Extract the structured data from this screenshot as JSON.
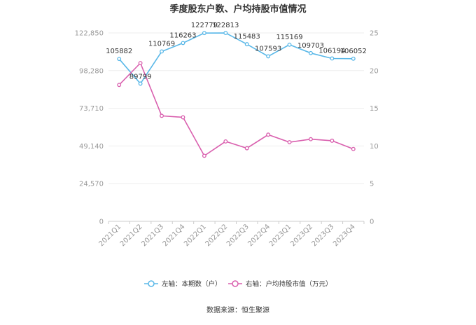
{
  "chart_data": {
    "type": "line",
    "title": "季度股东户数、户均持股市值情况",
    "categories": [
      "2021Q1",
      "2021Q2",
      "2021Q3",
      "2021Q4",
      "2022Q1",
      "2022Q2",
      "2022Q3",
      "2022Q4",
      "2023Q1",
      "2023Q2",
      "2023Q3",
      "2023Q4"
    ],
    "left_axis": {
      "ylim": [
        0,
        122850
      ],
      "ticks": [
        "0",
        "24,570",
        "49,140",
        "73,710",
        "98,280",
        "122,850"
      ]
    },
    "right_axis": {
      "ylim": [
        0,
        25
      ],
      "ticks": [
        "0",
        "5",
        "10",
        "15",
        "20",
        "25"
      ]
    },
    "series": [
      {
        "name": "左轴：本期数（户）",
        "axis": "left",
        "color": "#5ab8e8",
        "values": [
          105882,
          89799,
          110769,
          116263,
          122779,
          122813,
          115483,
          107593,
          115169,
          109703,
          106194,
          106052
        ],
        "labels": [
          "105882",
          "89799",
          "110769",
          "116263",
          "122779",
          "122813",
          "115483",
          "107593",
          "115169",
          "109703",
          "106194",
          "106052"
        ]
      },
      {
        "name": "右轴：户均持股市值（万元）",
        "axis": "right",
        "color": "#d95fae",
        "values": [
          18.1,
          21.0,
          14.0,
          13.8,
          8.7,
          10.6,
          9.7,
          11.5,
          10.5,
          10.9,
          10.7,
          9.6
        ]
      }
    ],
    "grid": true,
    "legend_position": "bottom",
    "source": "数据来源：恒生聚源"
  }
}
